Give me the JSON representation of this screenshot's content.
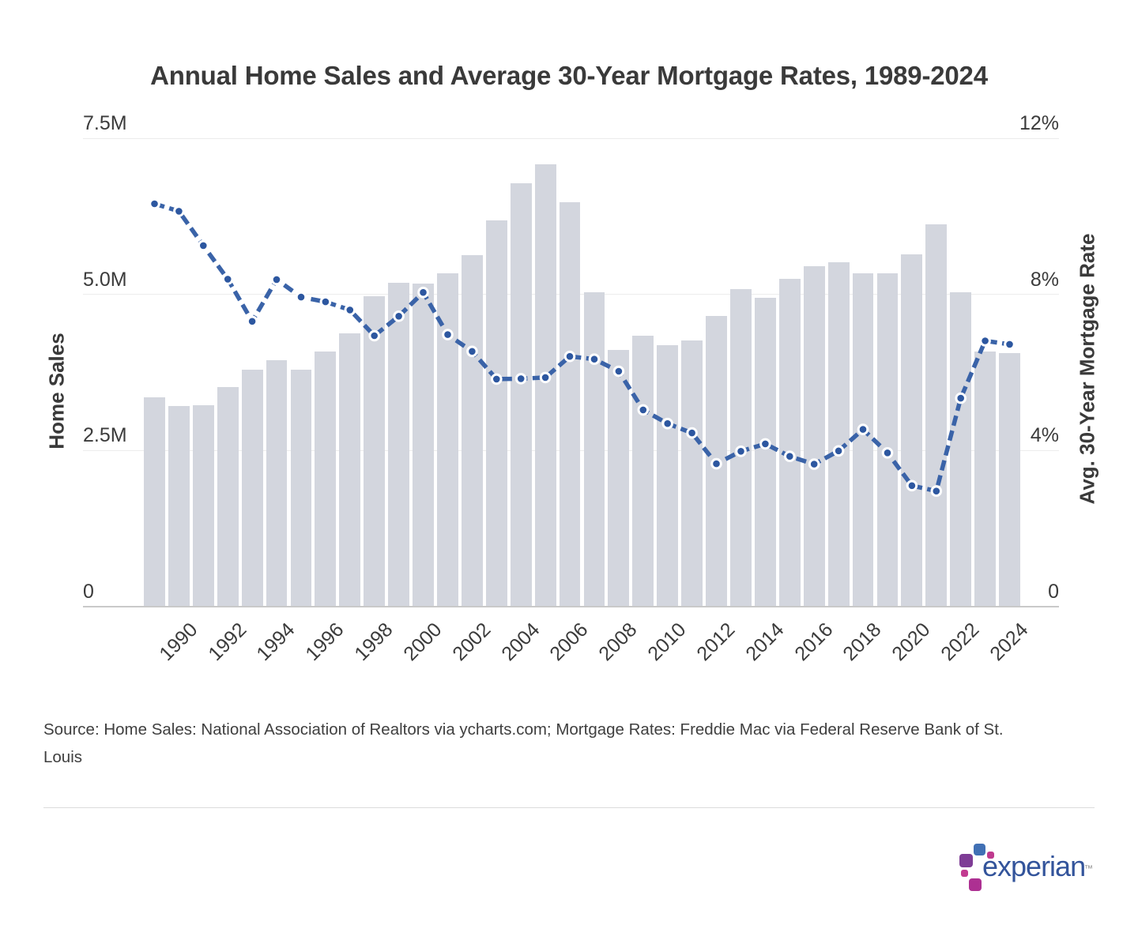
{
  "page": {
    "title": "Annual Home Sales and Average 30-Year Mortgage Rates, 1989-2024",
    "source": {
      "line1": "Source: Home Sales: National Association of Realtors via ycharts.com; Mortgage Rates: Freddie Mac via Federal Reserve Bank of St.",
      "line2": "Louis"
    },
    "logo": {
      "text": "experian",
      "trademark": "™"
    }
  },
  "chart_data": {
    "type": "bar",
    "subtype": "combo-bar-line-dual-axis",
    "title": "Annual Home Sales and Average 30-Year Mortgage Rates, 1989-2024",
    "categories": [
      1989,
      1990,
      1991,
      1992,
      1993,
      1994,
      1995,
      1996,
      1997,
      1998,
      1999,
      2000,
      2001,
      2002,
      2003,
      2004,
      2005,
      2006,
      2007,
      2008,
      2009,
      2010,
      2011,
      2012,
      2013,
      2014,
      2015,
      2016,
      2017,
      2018,
      2019,
      2020,
      2021,
      2022,
      2023,
      2024
    ],
    "series": [
      {
        "name": "Home Sales",
        "type": "bar",
        "axis": "left",
        "unit": "millions",
        "values": [
          3.35,
          3.21,
          3.22,
          3.52,
          3.8,
          3.95,
          3.8,
          4.09,
          4.37,
          4.97,
          5.19,
          5.17,
          5.34,
          5.63,
          6.18,
          6.78,
          7.08,
          6.48,
          5.03,
          4.11,
          4.34,
          4.19,
          4.26,
          4.66,
          5.09,
          4.94,
          5.25,
          5.45,
          5.51,
          5.34,
          5.34,
          5.64,
          6.12,
          5.03,
          4.09,
          4.06
        ]
      },
      {
        "name": "Avg. 30-Year Mortgage Rate",
        "type": "line",
        "axis": "right",
        "unit": "%",
        "values": [
          10.32,
          10.13,
          9.25,
          8.39,
          7.31,
          8.38,
          7.93,
          7.81,
          7.6,
          6.94,
          7.44,
          8.05,
          6.97,
          6.54,
          5.83,
          5.84,
          5.87,
          6.41,
          6.34,
          6.03,
          5.04,
          4.69,
          4.45,
          3.66,
          3.98,
          4.17,
          3.85,
          3.65,
          3.99,
          4.54,
          3.94,
          3.1,
          2.96,
          5.34,
          6.81,
          6.72
        ]
      }
    ],
    "left_axis": {
      "title": "Home Sales",
      "range": [
        0,
        7.5
      ],
      "ticks": [
        {
          "label": "7.5M",
          "value": 7.5
        },
        {
          "label": "5.0M",
          "value": 5.0
        },
        {
          "label": "2.5M",
          "value": 2.5
        },
        {
          "label": "0",
          "value": 0
        }
      ]
    },
    "right_axis": {
      "title": "Avg. 30-Year Mortgage Rate",
      "range": [
        0,
        12
      ],
      "ticks": [
        {
          "label": "12%",
          "value": 12
        },
        {
          "label": "8%",
          "value": 8
        },
        {
          "label": "4%",
          "value": 4
        },
        {
          "label": "0",
          "value": 0
        }
      ]
    },
    "x_tick_labels": [
      "1990",
      "1992",
      "1994",
      "1996",
      "1998",
      "2000",
      "2002",
      "2004",
      "2006",
      "2008",
      "2010",
      "2012",
      "2014",
      "2016",
      "2018",
      "2020",
      "2022",
      "2024"
    ],
    "grid": true,
    "legend": "none",
    "colors": {
      "bar": "#d3d6de",
      "line": "#3a63a8",
      "dot_fill": "#2d57a0",
      "dot_ring": "#ffffff",
      "gridline": "#ececec",
      "baseline": "#c9c9c9",
      "text": "#3b3b3b"
    }
  }
}
